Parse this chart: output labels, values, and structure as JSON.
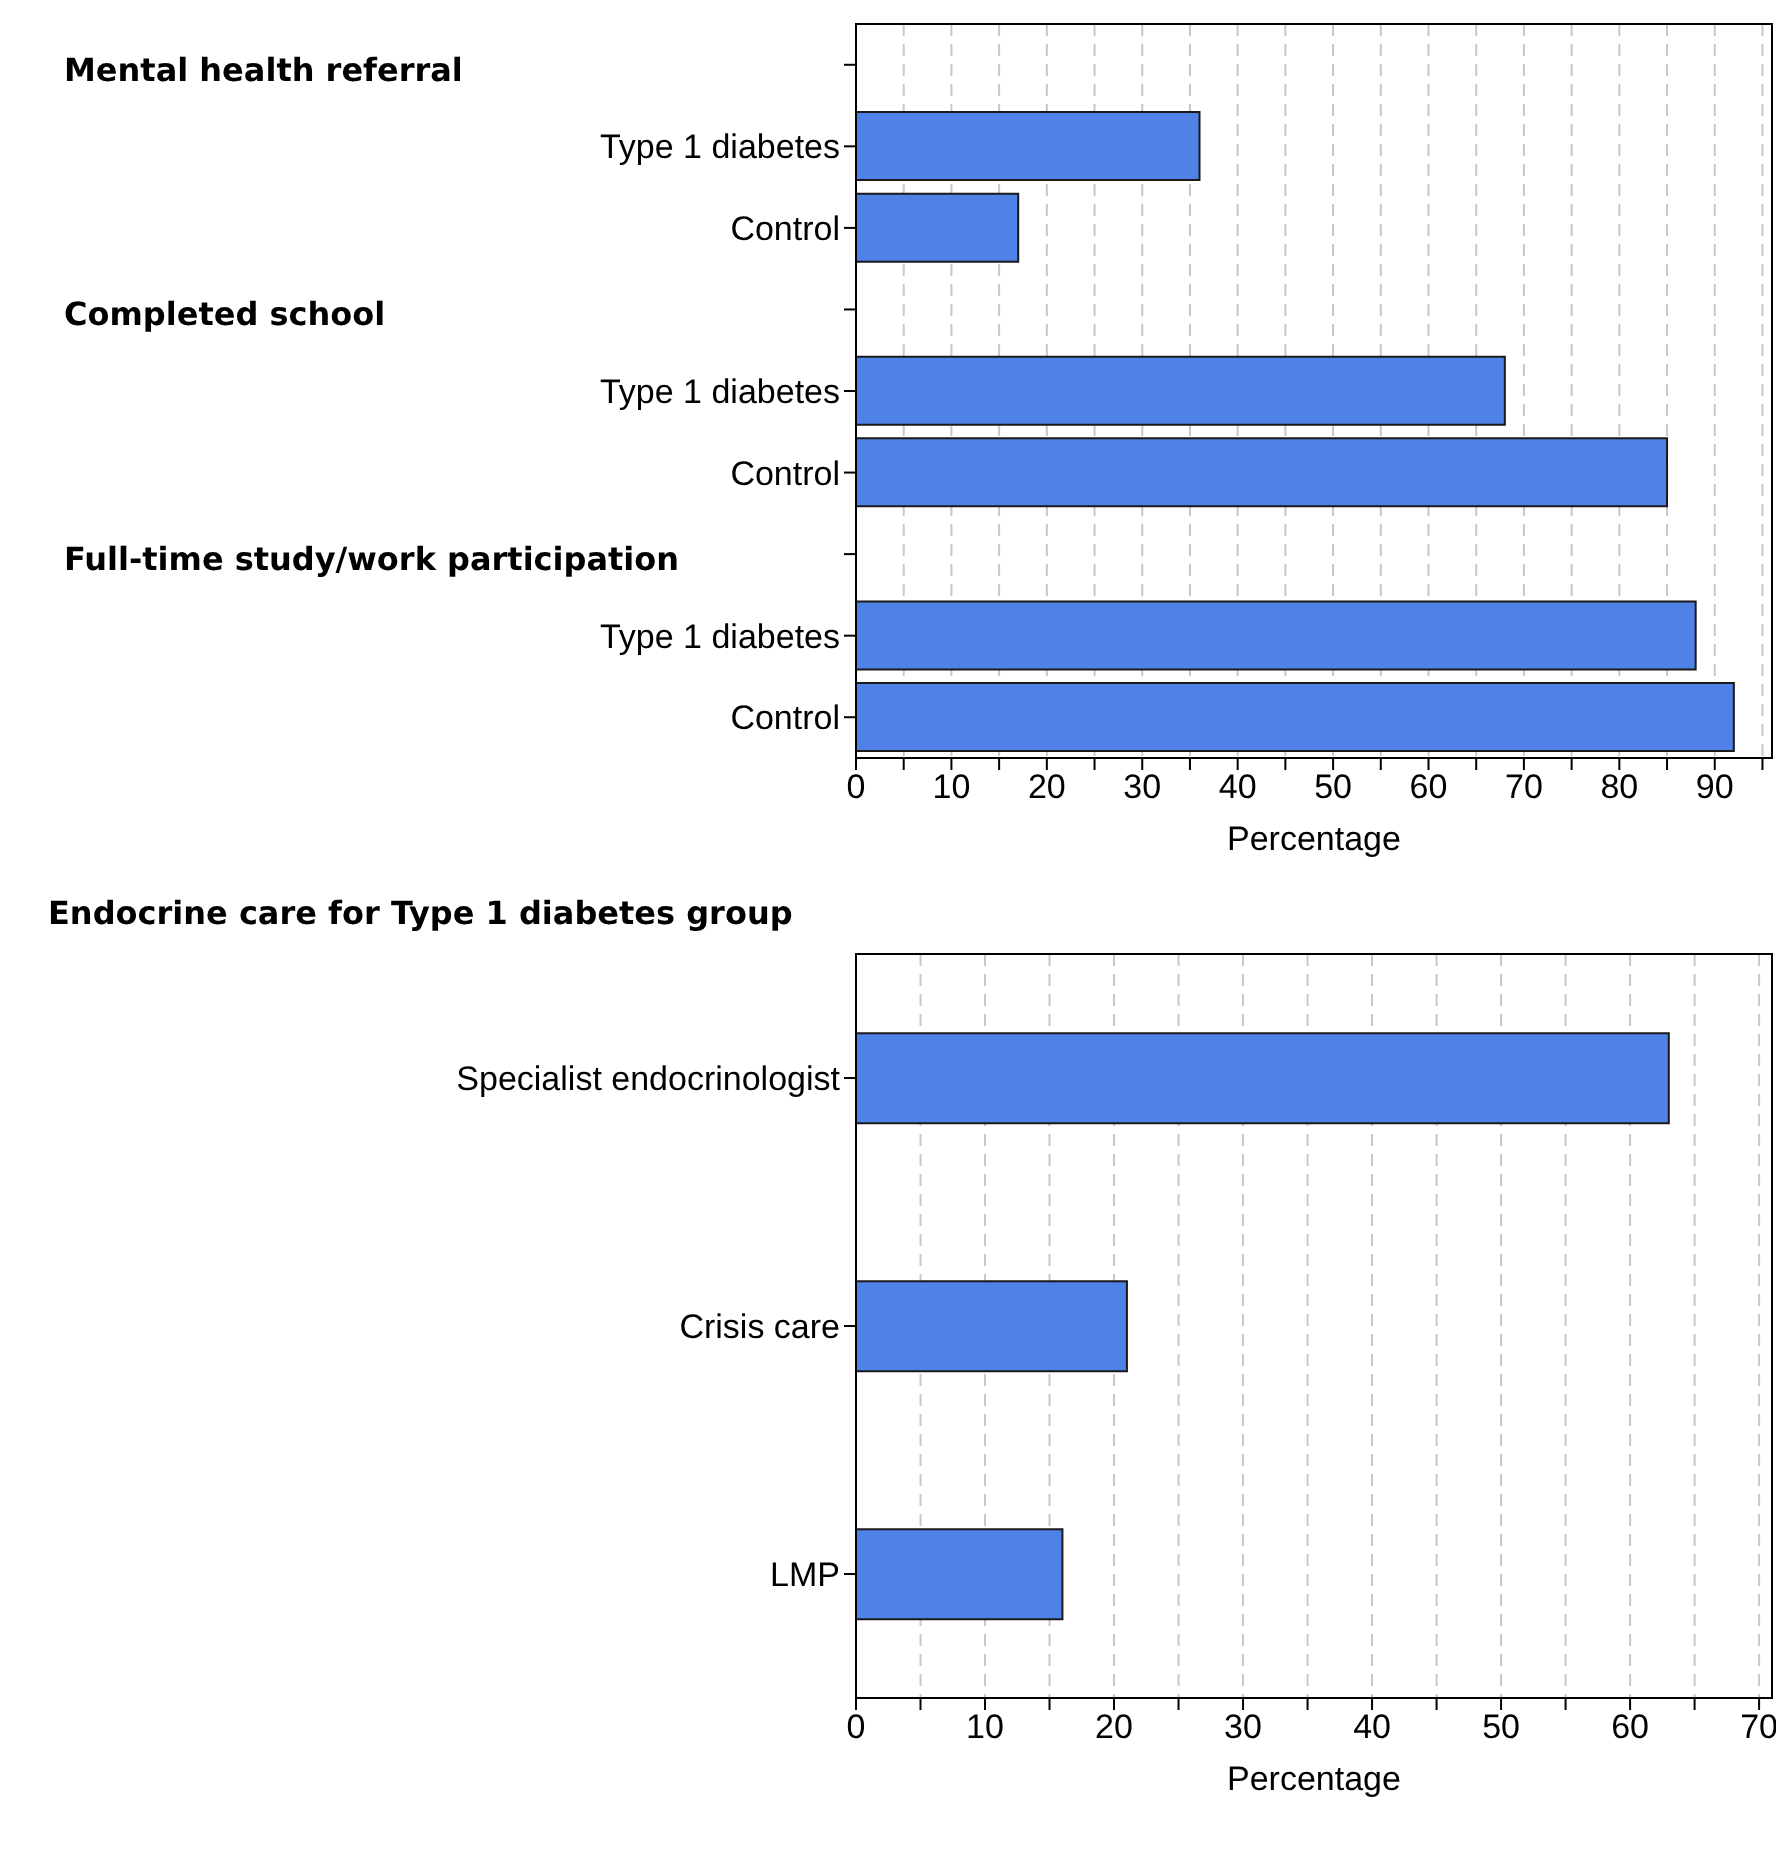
{
  "chart_data": [
    {
      "type": "bar",
      "orientation": "horizontal",
      "categories": [
        null,
        "Type 1 diabetes",
        "Control",
        null,
        "Type 1 diabetes",
        "Control",
        null,
        "Type 1 diabetes",
        "Control"
      ],
      "values": [
        null,
        36,
        17,
        null,
        68,
        85,
        null,
        88,
        92
      ],
      "color": "#4f81e6",
      "xlim": [
        0,
        96
      ],
      "xticks": [
        0,
        {
          "value": 5,
          "label": null
        },
        10,
        {
          "value": 15,
          "label": null
        },
        20,
        {
          "value": 25,
          "label": null
        },
        30,
        {
          "value": 35,
          "label": null
        },
        40,
        {
          "value": 45,
          "label": null
        },
        50,
        {
          "value": 55,
          "label": null
        },
        60,
        {
          "value": 65,
          "label": null
        },
        70,
        {
          "value": 75,
          "label": null
        },
        80,
        {
          "value": 85,
          "label": null
        },
        90,
        {
          "value": 95,
          "label": null
        }
      ],
      "xlabel": "Percentage",
      "grid": "x",
      "annotations": [
        "Mental health referral",
        "Completed school",
        "Full-time study/work participation"
      ]
    },
    {
      "type": "bar",
      "orientation": "horizontal",
      "title": "Endocrine care for Type 1 diabetes group",
      "categories": [
        "Specialist endocrinologist",
        "Crisis care",
        "LMP"
      ],
      "values": [
        63,
        21,
        16
      ],
      "color": "#4f81e6",
      "xlim": [
        0,
        71
      ],
      "xticks": [
        0,
        {
          "value": 5,
          "label": null
        },
        10,
        {
          "value": 15,
          "label": null
        },
        20,
        {
          "value": 25,
          "label": null
        },
        30,
        {
          "value": 35,
          "label": null
        },
        40,
        {
          "value": 45,
          "label": null
        },
        50,
        {
          "value": 55,
          "label": null
        },
        60,
        {
          "value": 65,
          "label": null
        },
        70
      ],
      "xlabel": "Percentage",
      "grid": "x"
    }
  ]
}
